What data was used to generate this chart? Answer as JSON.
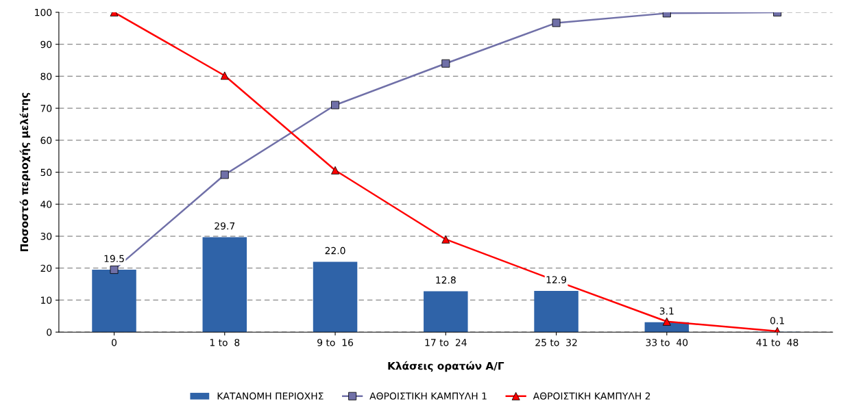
{
  "chart_data": {
    "type": "bar",
    "xlabel": "Κλάσεις ορατών Α/Γ",
    "ylabel": "Ποσοστό περιοχής μελέτης",
    "categories": [
      "0",
      "1 to  8",
      "9 to  16",
      "17 to  24",
      "25 to  32",
      "33 to  40",
      "41 to  48"
    ],
    "series": [
      {
        "name": "ΚΑΤΑΝΟΜΗ ΠΕΡΙΟΧΗΣ",
        "color": "#2f63a8",
        "values": [
          19.5,
          29.7,
          22.0,
          12.8,
          12.9,
          3.1,
          0.1
        ],
        "value_labels": [
          "19.5",
          "29.7",
          "22.0",
          "12.8",
          "12.9",
          "3.1",
          "0.1"
        ]
      },
      {
        "name": "ΑΘΡΟΙΣΤΙΚΗ ΚΑΜΠΥΛΗ 1",
        "type": "line",
        "color": "#7070a8",
        "marker": "square",
        "values": [
          19.5,
          49.2,
          71.0,
          84.0,
          96.7,
          99.7,
          100
        ]
      },
      {
        "name": "ΑΘΡΟΙΣΤΙΚΗ ΚΑΜΠΥΛΗ 2",
        "type": "line",
        "color": "#ff0000",
        "marker": "triangle",
        "values": [
          100,
          80.2,
          50.6,
          29.0,
          16.0,
          3.3,
          0.3
        ]
      }
    ],
    "ylim": [
      0,
      100
    ],
    "yticks": [
      0,
      10,
      20,
      30,
      40,
      50,
      60,
      70,
      80,
      90,
      100
    ],
    "grid": "y",
    "legend": "bottom",
    "line_style": "solid"
  }
}
